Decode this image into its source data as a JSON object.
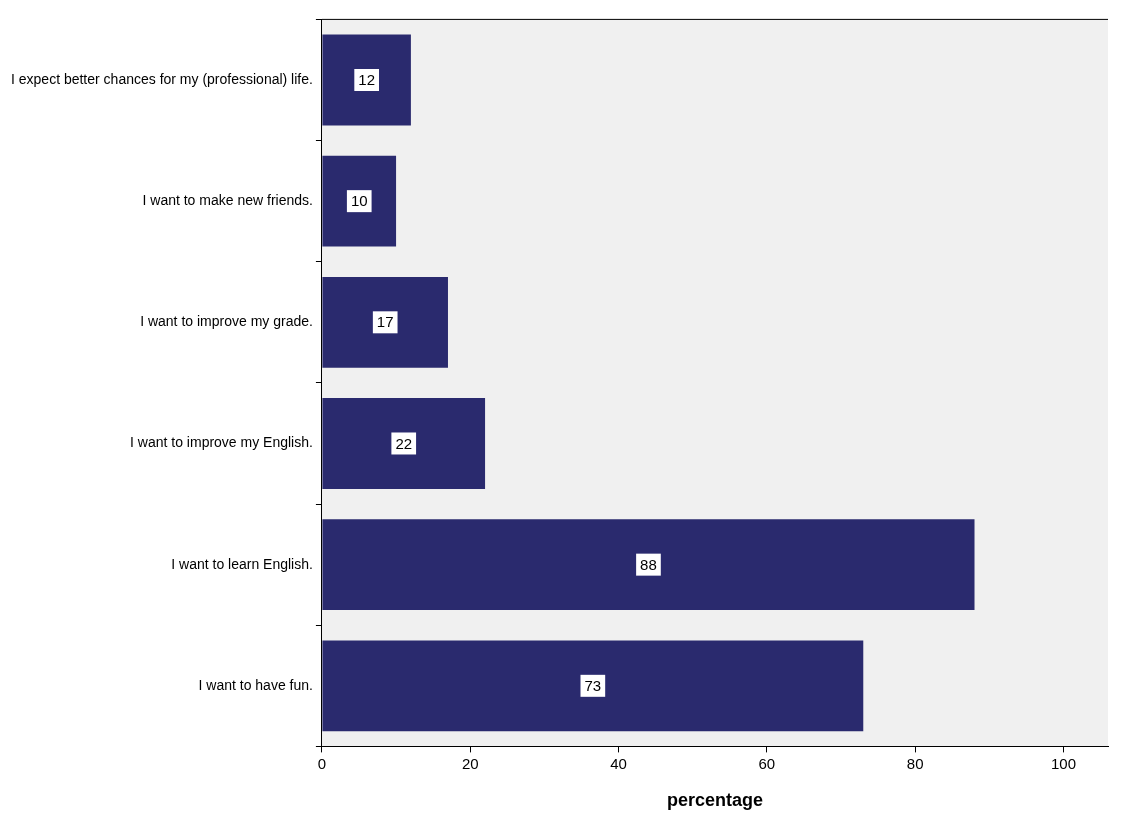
{
  "chart_data": {
    "type": "bar",
    "orientation": "horizontal",
    "xlabel": "percentage",
    "categories": [
      "I expect better chances for my (professional) life.",
      "I want to make new friends.",
      "I want to improve my grade.",
      "I want to improve my English.",
      "I want to learn English.",
      "I want to have fun."
    ],
    "values": [
      12,
      10,
      17,
      22,
      88,
      73
    ],
    "color": "#2a2a6e",
    "xlim": [
      0,
      106
    ],
    "xticks": [
      0,
      20,
      40,
      60,
      80,
      100
    ],
    "grid": false,
    "legend": false,
    "data_labels": true
  }
}
